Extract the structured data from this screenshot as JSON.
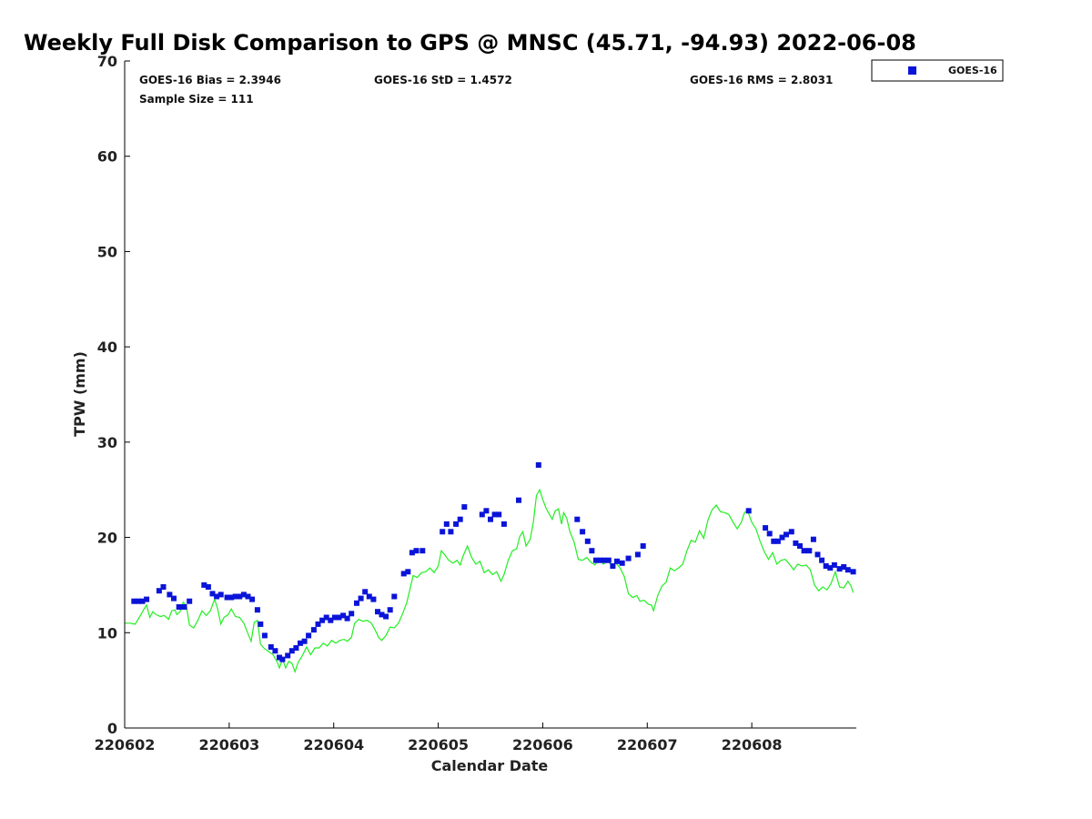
{
  "chart_data": {
    "type": "scatter",
    "title": "Weekly Full Disk Comparison to GPS @ MNSC (45.71, -94.93) 2022-06-08",
    "xlabel": "Calendar Date",
    "ylabel": "TPW (mm)",
    "xlim": [
      0,
      7
    ],
    "ylim": [
      0,
      70
    ],
    "yticks": [
      0,
      10,
      20,
      30,
      40,
      50,
      60,
      70
    ],
    "xticks": [
      0,
      1,
      2,
      3,
      4,
      5,
      6
    ],
    "xtick_labels": [
      "220602",
      "220603",
      "220604",
      "220605",
      "220606",
      "220607",
      "220608"
    ],
    "legend": {
      "placement": "outside-top-right",
      "entries": [
        "GOES-16"
      ]
    },
    "stats": {
      "bias": "GOES-16 Bias = 2.3946",
      "std": "GOES-16 StD = 1.4572",
      "rms": "GOES-16 RMS = 2.8031",
      "sample": "Sample Size = 111"
    },
    "colors": {
      "goes": "#0a14d8",
      "gps": "#22ee22",
      "axis": "#000000"
    },
    "series": [
      {
        "name": "GOES-16",
        "kind": "scatter",
        "points": [
          [
            0.09,
            13.3
          ],
          [
            0.13,
            13.3
          ],
          [
            0.17,
            13.3
          ],
          [
            0.21,
            13.5
          ],
          [
            0.33,
            14.4
          ],
          [
            0.37,
            14.8
          ],
          [
            0.43,
            14.0
          ],
          [
            0.47,
            13.6
          ],
          [
            0.52,
            12.7
          ],
          [
            0.57,
            12.7
          ],
          [
            0.62,
            13.3
          ],
          [
            0.76,
            15.0
          ],
          [
            0.8,
            14.8
          ],
          [
            0.84,
            14.1
          ],
          [
            0.88,
            13.8
          ],
          [
            0.92,
            14.0
          ],
          [
            0.98,
            13.7
          ],
          [
            1.02,
            13.7
          ],
          [
            1.06,
            13.8
          ],
          [
            1.1,
            13.8
          ],
          [
            1.14,
            14.0
          ],
          [
            1.18,
            13.8
          ],
          [
            1.22,
            13.5
          ],
          [
            1.27,
            12.4
          ],
          [
            1.3,
            10.9
          ],
          [
            1.34,
            9.7
          ],
          [
            1.4,
            8.5
          ],
          [
            1.44,
            8.1
          ],
          [
            1.48,
            7.4
          ],
          [
            1.51,
            7.2
          ],
          [
            1.56,
            7.6
          ],
          [
            1.6,
            8.1
          ],
          [
            1.64,
            8.4
          ],
          [
            1.68,
            8.9
          ],
          [
            1.72,
            9.1
          ],
          [
            1.76,
            9.7
          ],
          [
            1.81,
            10.3
          ],
          [
            1.85,
            10.9
          ],
          [
            1.89,
            11.3
          ],
          [
            1.93,
            11.6
          ],
          [
            1.97,
            11.3
          ],
          [
            2.01,
            11.6
          ],
          [
            2.05,
            11.6
          ],
          [
            2.09,
            11.8
          ],
          [
            2.13,
            11.5
          ],
          [
            2.17,
            12.0
          ],
          [
            2.22,
            13.1
          ],
          [
            2.26,
            13.6
          ],
          [
            2.3,
            14.3
          ],
          [
            2.34,
            13.8
          ],
          [
            2.38,
            13.5
          ],
          [
            2.42,
            12.2
          ],
          [
            2.46,
            11.9
          ],
          [
            2.5,
            11.7
          ],
          [
            2.54,
            12.4
          ],
          [
            2.58,
            13.8
          ],
          [
            2.67,
            16.2
          ],
          [
            2.71,
            16.4
          ],
          [
            2.75,
            18.4
          ],
          [
            2.79,
            18.6
          ],
          [
            2.85,
            18.6
          ],
          [
            3.04,
            20.6
          ],
          [
            3.08,
            21.4
          ],
          [
            3.12,
            20.6
          ],
          [
            3.17,
            21.4
          ],
          [
            3.21,
            21.9
          ],
          [
            3.25,
            23.2
          ],
          [
            3.42,
            22.4
          ],
          [
            3.46,
            22.8
          ],
          [
            3.5,
            21.9
          ],
          [
            3.54,
            22.4
          ],
          [
            3.58,
            22.4
          ],
          [
            3.63,
            21.4
          ],
          [
            3.77,
            23.9
          ],
          [
            3.96,
            27.6
          ],
          [
            4.33,
            21.9
          ],
          [
            4.38,
            20.6
          ],
          [
            4.43,
            19.6
          ],
          [
            4.47,
            18.6
          ],
          [
            4.51,
            17.6
          ],
          [
            4.55,
            17.6
          ],
          [
            4.59,
            17.6
          ],
          [
            4.63,
            17.6
          ],
          [
            4.67,
            17.0
          ],
          [
            4.71,
            17.5
          ],
          [
            4.76,
            17.3
          ],
          [
            4.82,
            17.8
          ],
          [
            4.91,
            18.2
          ],
          [
            4.96,
            19.1
          ],
          [
            5.97,
            22.8
          ],
          [
            6.13,
            21.0
          ],
          [
            6.17,
            20.4
          ],
          [
            6.21,
            19.6
          ],
          [
            6.25,
            19.6
          ],
          [
            6.29,
            20.0
          ],
          [
            6.33,
            20.3
          ],
          [
            6.38,
            20.6
          ],
          [
            6.42,
            19.4
          ],
          [
            6.46,
            19.1
          ],
          [
            6.5,
            18.6
          ],
          [
            6.55,
            18.6
          ],
          [
            6.59,
            19.8
          ],
          [
            6.63,
            18.2
          ],
          [
            6.67,
            17.6
          ],
          [
            6.71,
            17.0
          ],
          [
            6.75,
            16.8
          ],
          [
            6.79,
            17.1
          ],
          [
            6.84,
            16.7
          ],
          [
            6.88,
            16.9
          ],
          [
            6.92,
            16.6
          ],
          [
            6.97,
            16.4
          ]
        ]
      },
      {
        "name": "GPS",
        "kind": "line",
        "points": [
          [
            0.0,
            11.0
          ],
          [
            0.05,
            11.0
          ],
          [
            0.1,
            10.9
          ],
          [
            0.14,
            11.6
          ],
          [
            0.18,
            12.4
          ],
          [
            0.21,
            12.9
          ],
          [
            0.24,
            11.6
          ],
          [
            0.27,
            12.2
          ],
          [
            0.3,
            11.9
          ],
          [
            0.34,
            11.7
          ],
          [
            0.38,
            11.8
          ],
          [
            0.42,
            11.4
          ],
          [
            0.45,
            12.3
          ],
          [
            0.48,
            12.4
          ],
          [
            0.5,
            11.9
          ],
          [
            0.53,
            12.2
          ],
          [
            0.56,
            13.2
          ],
          [
            0.59,
            12.8
          ],
          [
            0.62,
            10.8
          ],
          [
            0.66,
            10.5
          ],
          [
            0.7,
            11.3
          ],
          [
            0.74,
            12.3
          ],
          [
            0.78,
            11.8
          ],
          [
            0.82,
            12.3
          ],
          [
            0.86,
            13.5
          ],
          [
            0.89,
            12.5
          ],
          [
            0.92,
            10.9
          ],
          [
            0.95,
            11.6
          ],
          [
            0.99,
            11.9
          ],
          [
            1.02,
            12.5
          ],
          [
            1.06,
            11.7
          ],
          [
            1.1,
            11.6
          ],
          [
            1.14,
            11.0
          ],
          [
            1.18,
            9.9
          ],
          [
            1.21,
            9.1
          ],
          [
            1.24,
            11.1
          ],
          [
            1.27,
            11.3
          ],
          [
            1.3,
            8.8
          ],
          [
            1.34,
            8.3
          ],
          [
            1.38,
            8.0
          ],
          [
            1.42,
            7.7
          ],
          [
            1.46,
            6.9
          ],
          [
            1.48,
            6.3
          ],
          [
            1.51,
            7.2
          ],
          [
            1.54,
            6.3
          ],
          [
            1.57,
            7.0
          ],
          [
            1.6,
            6.8
          ],
          [
            1.63,
            5.9
          ],
          [
            1.66,
            6.9
          ],
          [
            1.7,
            7.6
          ],
          [
            1.74,
            8.5
          ],
          [
            1.78,
            7.7
          ],
          [
            1.82,
            8.4
          ],
          [
            1.86,
            8.4
          ],
          [
            1.9,
            8.9
          ],
          [
            1.94,
            8.6
          ],
          [
            1.98,
            9.2
          ],
          [
            2.02,
            8.9
          ],
          [
            2.06,
            9.2
          ],
          [
            2.1,
            9.3
          ],
          [
            2.13,
            9.1
          ],
          [
            2.17,
            9.5
          ],
          [
            2.2,
            11.0
          ],
          [
            2.24,
            11.4
          ],
          [
            2.28,
            11.2
          ],
          [
            2.32,
            11.3
          ],
          [
            2.36,
            11.0
          ],
          [
            2.4,
            10.2
          ],
          [
            2.43,
            9.5
          ],
          [
            2.46,
            9.2
          ],
          [
            2.5,
            9.7
          ],
          [
            2.54,
            10.6
          ],
          [
            2.58,
            10.5
          ],
          [
            2.62,
            11.0
          ],
          [
            2.66,
            12.0
          ],
          [
            2.7,
            13.2
          ],
          [
            2.73,
            14.6
          ],
          [
            2.76,
            16.0
          ],
          [
            2.8,
            15.8
          ],
          [
            2.84,
            16.3
          ],
          [
            2.88,
            16.4
          ],
          [
            2.92,
            16.8
          ],
          [
            2.96,
            16.3
          ],
          [
            3.0,
            17.0
          ],
          [
            3.03,
            18.6
          ],
          [
            3.06,
            18.2
          ],
          [
            3.1,
            17.6
          ],
          [
            3.14,
            17.3
          ],
          [
            3.18,
            17.6
          ],
          [
            3.21,
            17.1
          ],
          [
            3.24,
            18.1
          ],
          [
            3.28,
            19.1
          ],
          [
            3.32,
            17.9
          ],
          [
            3.36,
            17.2
          ],
          [
            3.4,
            17.5
          ],
          [
            3.44,
            16.3
          ],
          [
            3.48,
            16.6
          ],
          [
            3.52,
            16.1
          ],
          [
            3.56,
            16.4
          ],
          [
            3.6,
            15.4
          ],
          [
            3.63,
            16.1
          ],
          [
            3.67,
            17.6
          ],
          [
            3.71,
            18.6
          ],
          [
            3.75,
            18.8
          ],
          [
            3.78,
            20.1
          ],
          [
            3.81,
            20.6
          ],
          [
            3.84,
            19.1
          ],
          [
            3.88,
            19.8
          ],
          [
            3.91,
            21.6
          ],
          [
            3.94,
            24.4
          ],
          [
            3.97,
            25.0
          ],
          [
            4.0,
            24.0
          ],
          [
            4.03,
            23.1
          ],
          [
            4.06,
            22.5
          ],
          [
            4.09,
            21.9
          ],
          [
            4.12,
            22.8
          ],
          [
            4.15,
            23.0
          ],
          [
            4.18,
            21.4
          ],
          [
            4.2,
            22.6
          ],
          [
            4.23,
            22.0
          ],
          [
            4.26,
            20.6
          ],
          [
            4.3,
            19.5
          ],
          [
            4.34,
            17.7
          ],
          [
            4.38,
            17.6
          ],
          [
            4.42,
            17.9
          ],
          [
            4.46,
            17.4
          ],
          [
            4.5,
            17.1
          ],
          [
            4.54,
            17.8
          ],
          [
            4.58,
            17.2
          ],
          [
            4.62,
            17.5
          ],
          [
            4.66,
            17.1
          ],
          [
            4.7,
            17.3
          ],
          [
            4.74,
            16.8
          ],
          [
            4.78,
            15.9
          ],
          [
            4.82,
            14.1
          ],
          [
            4.86,
            13.7
          ],
          [
            4.9,
            13.9
          ],
          [
            4.93,
            13.3
          ],
          [
            4.97,
            13.4
          ],
          [
            5.01,
            13.0
          ],
          [
            5.04,
            12.9
          ],
          [
            5.06,
            12.3
          ],
          [
            5.1,
            13.9
          ],
          [
            5.14,
            14.9
          ],
          [
            5.18,
            15.3
          ],
          [
            5.22,
            16.8
          ],
          [
            5.26,
            16.5
          ],
          [
            5.3,
            16.8
          ],
          [
            5.34,
            17.2
          ],
          [
            5.38,
            18.6
          ],
          [
            5.42,
            19.7
          ],
          [
            5.46,
            19.5
          ],
          [
            5.5,
            20.7
          ],
          [
            5.54,
            19.9
          ],
          [
            5.58,
            21.8
          ],
          [
            5.62,
            22.9
          ],
          [
            5.66,
            23.4
          ],
          [
            5.7,
            22.7
          ],
          [
            5.74,
            22.6
          ],
          [
            5.78,
            22.4
          ],
          [
            5.82,
            21.6
          ],
          [
            5.86,
            20.9
          ],
          [
            5.9,
            21.6
          ],
          [
            5.93,
            22.6
          ],
          [
            5.96,
            22.8
          ],
          [
            6.0,
            21.6
          ],
          [
            6.04,
            20.9
          ],
          [
            6.08,
            19.6
          ],
          [
            6.12,
            18.5
          ],
          [
            6.16,
            17.7
          ],
          [
            6.2,
            18.4
          ],
          [
            6.24,
            17.2
          ],
          [
            6.28,
            17.6
          ],
          [
            6.32,
            17.7
          ],
          [
            6.36,
            17.2
          ],
          [
            6.4,
            16.6
          ],
          [
            6.44,
            17.2
          ],
          [
            6.48,
            17.0
          ],
          [
            6.52,
            17.1
          ],
          [
            6.56,
            16.6
          ],
          [
            6.6,
            15.0
          ],
          [
            6.64,
            14.4
          ],
          [
            6.68,
            14.8
          ],
          [
            6.72,
            14.5
          ],
          [
            6.76,
            15.2
          ],
          [
            6.8,
            16.4
          ],
          [
            6.84,
            14.8
          ],
          [
            6.88,
            14.7
          ],
          [
            6.92,
            15.4
          ],
          [
            6.95,
            14.9
          ],
          [
            6.97,
            14.2
          ]
        ]
      }
    ]
  }
}
